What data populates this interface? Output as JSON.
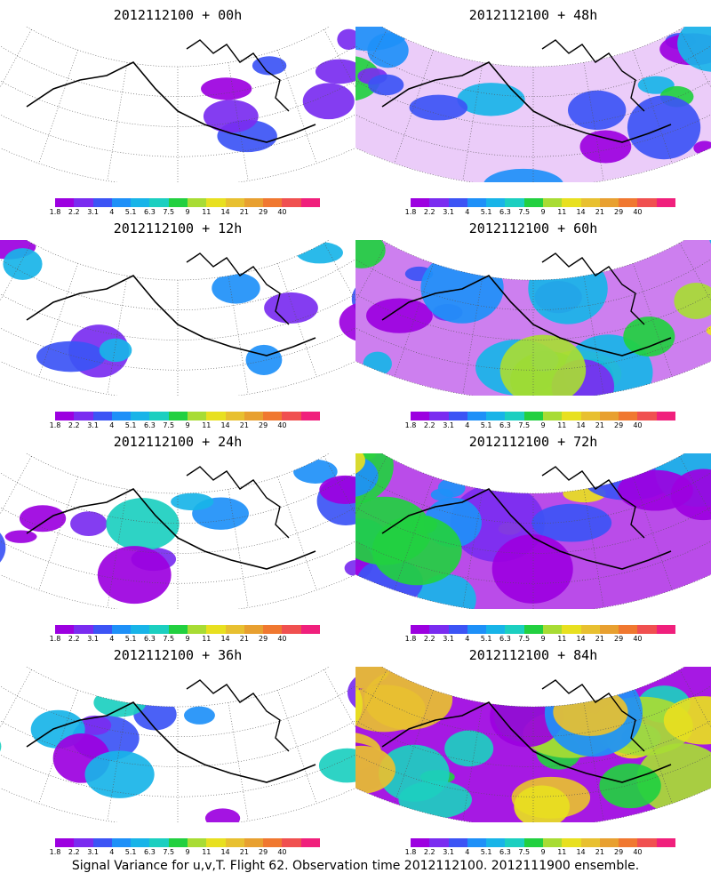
{
  "panels": [
    {
      "title": "2012112100 + 00h",
      "intensity": 0.2
    },
    {
      "title": "2012112100 + 48h",
      "intensity": 0.55
    },
    {
      "title": "2012112100 + 12h",
      "intensity": 0.3
    },
    {
      "title": "2012112100 + 60h",
      "intensity": 0.7
    },
    {
      "title": "2012112100 + 24h",
      "intensity": 0.4
    },
    {
      "title": "2012112100 + 72h",
      "intensity": 0.8
    },
    {
      "title": "2012112100 + 36h",
      "intensity": 0.48
    },
    {
      "title": "2012112100 + 84h",
      "intensity": 0.9
    }
  ],
  "colorbar": {
    "labels": [
      "1.8",
      "2.2",
      "3.1",
      "4",
      "5.1",
      "6.3",
      "7.5",
      "9",
      "11",
      "14",
      "21",
      "29",
      "40"
    ],
    "colors": [
      "#9c00e0",
      "#7a2cf0",
      "#3c54f5",
      "#1e90f8",
      "#18b4e8",
      "#1ccfc0",
      "#22d040",
      "#a8dc34",
      "#e8e020",
      "#e8c030",
      "#e8a030",
      "#f07830",
      "#f05050",
      "#f0207c"
    ]
  },
  "coast_color": "#000000",
  "footer": "Signal Variance for u,v,T. Flight 62. Observation time 2012112100. 2012111900 ensemble."
}
